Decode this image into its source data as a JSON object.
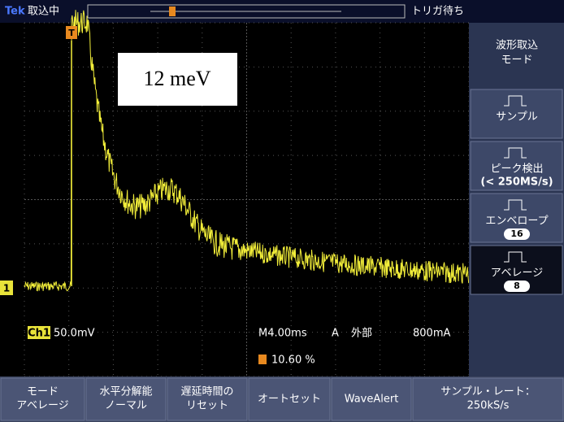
{
  "header": {
    "brand": "Tek",
    "status": "取込中",
    "trigger_status": "トリガ待ち"
  },
  "annotation": "12 meV",
  "side_menu": {
    "title": [
      "波形取込",
      "モード"
    ],
    "items": [
      {
        "label": "サンプル"
      },
      {
        "label": "ピーク検出",
        "sub": "(< 250MS/s)"
      },
      {
        "label": "エンベロープ",
        "count": "16"
      },
      {
        "label": "アベレージ",
        "count": "8"
      }
    ]
  },
  "channel_marker": "1",
  "trigger_marker": "T",
  "readout": {
    "channel": "Ch1",
    "scale": "50.0mV",
    "timebase": "M4.00ms",
    "mode": "A",
    "source": "外部",
    "level": "800mA",
    "trigger_position": "10.60 %"
  },
  "bottom_menu": [
    [
      "モード",
      "アベレージ"
    ],
    [
      "水平分解能",
      "ノーマル"
    ],
    [
      "遅延時間の",
      "リセット"
    ],
    [
      "オートセット"
    ],
    [
      "WaveAlert"
    ],
    [
      "サンプル・レート：",
      "250kS/s"
    ]
  ]
}
